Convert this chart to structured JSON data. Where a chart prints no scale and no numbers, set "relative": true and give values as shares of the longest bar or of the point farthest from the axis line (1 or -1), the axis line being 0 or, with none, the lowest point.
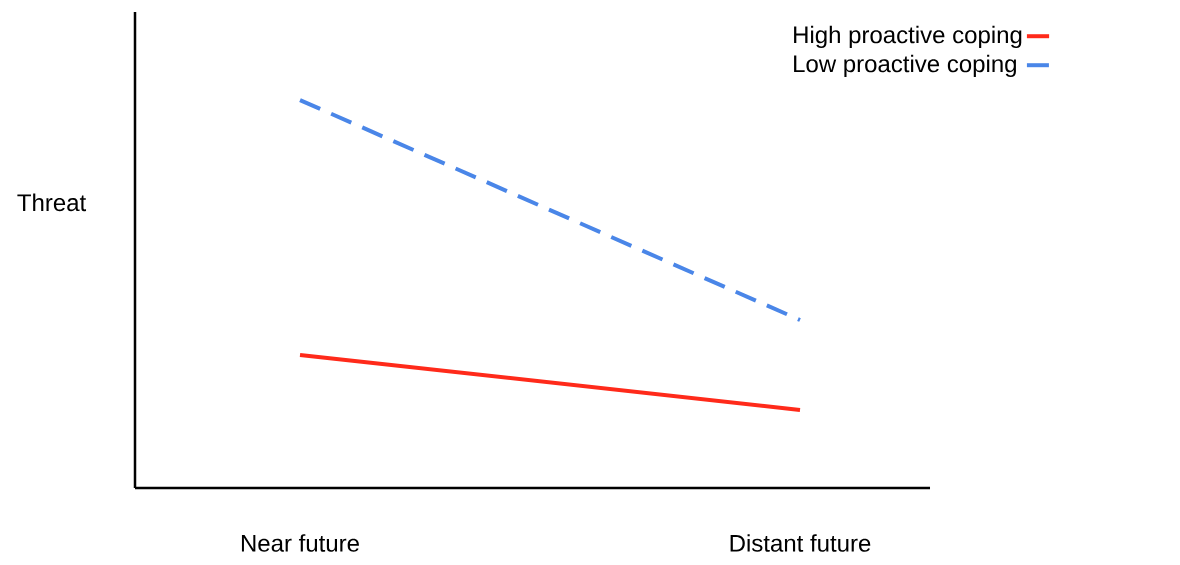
{
  "chart_data": {
    "type": "line",
    "relative": true,
    "ylabel": "Threat",
    "categories": [
      "Near future",
      "Distant future"
    ],
    "series": [
      {
        "name": "High proactive coping",
        "color": "#ff2a1a",
        "line_style": "solid",
        "values": [
          0.343,
          0.201
        ]
      },
      {
        "name": "Low proactive coping",
        "color": "#4a86e8",
        "line_style": "dashed",
        "values": [
          1,
          0.433
        ]
      }
    ],
    "legend": "top right",
    "marker": "none"
  }
}
